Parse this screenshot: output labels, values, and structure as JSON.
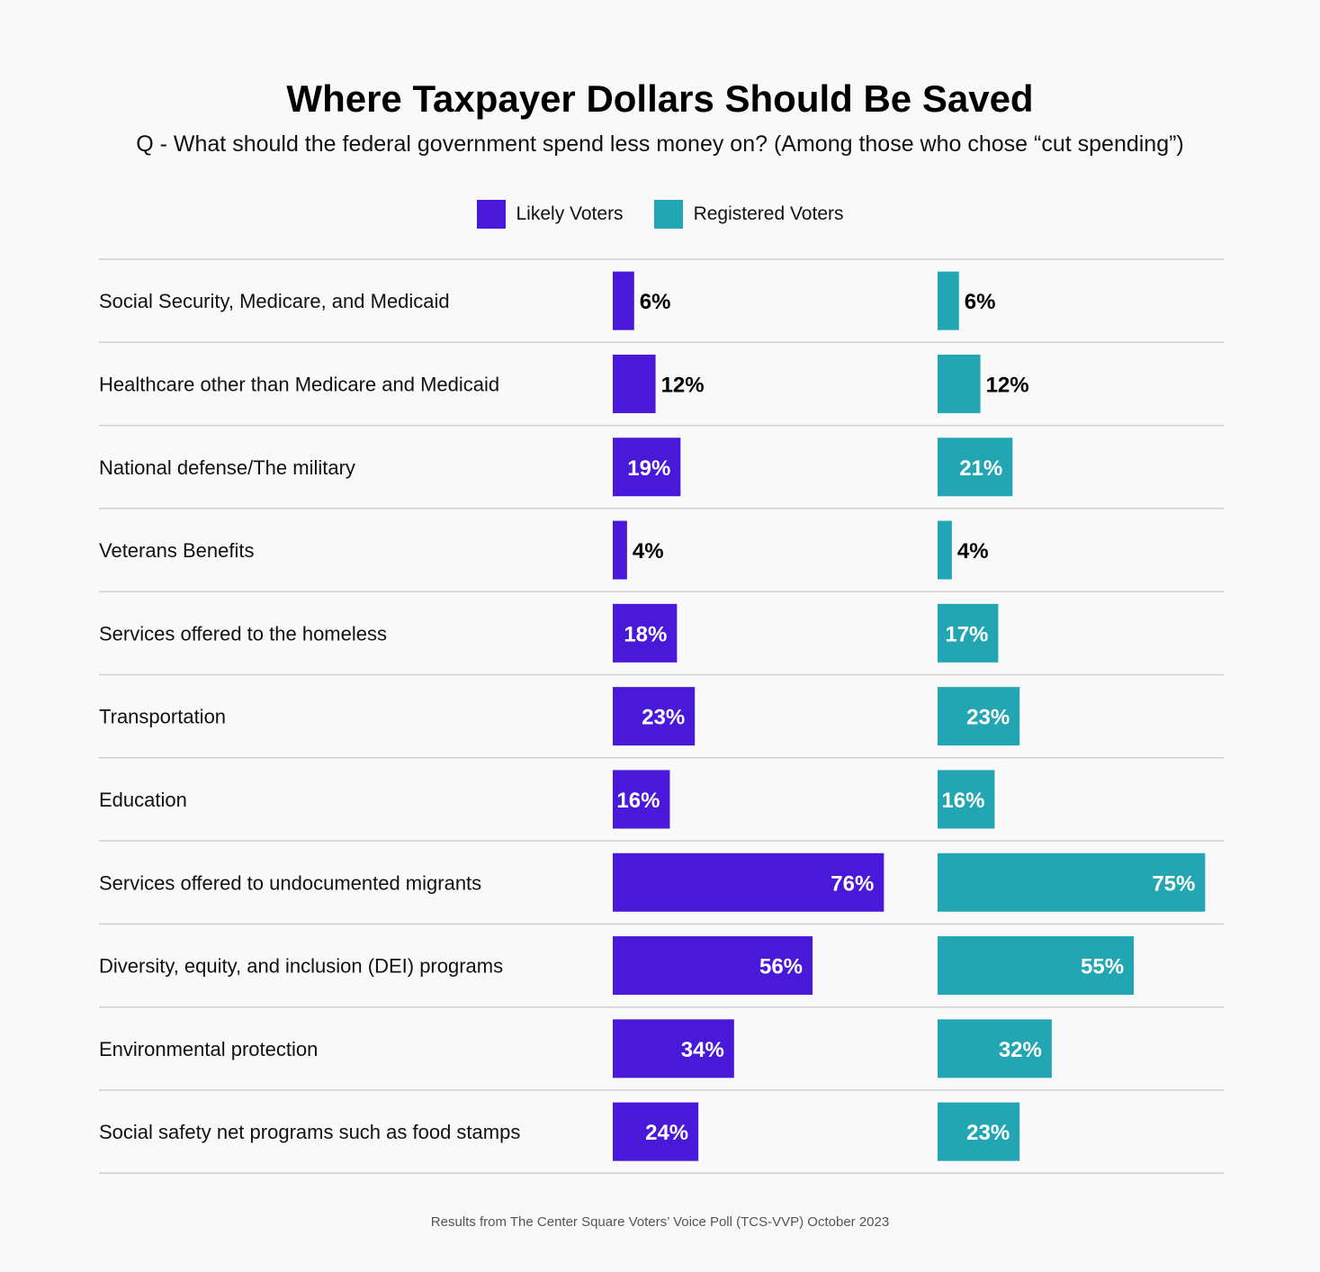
{
  "chart_data": {
    "type": "bar",
    "orientation": "horizontal",
    "title": "Where Taxpayer Dollars Should Be Saved",
    "subtitle": "Q - What should the federal government spend less money on? (Among those who chose “cut spending”)",
    "categories": [
      "Social Security, Medicare, and Medicaid",
      "Healthcare other than Medicare and Medicaid",
      "National defense/The military",
      "Veterans Benefits",
      "Services offered to the homeless",
      "Transportation",
      "Education",
      "Services offered to undocumented migrants",
      "Diversity, equity, and inclusion (DEI) programs",
      "Environmental protection",
      "Social safety net programs such as food stamps"
    ],
    "series": [
      {
        "name": "Likely Voters",
        "color": "#4a18d8",
        "values": [
          6,
          12,
          19,
          4,
          18,
          23,
          16,
          76,
          56,
          34,
          24
        ]
      },
      {
        "name": "Registered Voters",
        "color": "#22a6b3",
        "values": [
          6,
          12,
          21,
          4,
          17,
          23,
          16,
          75,
          55,
          32,
          23
        ]
      }
    ],
    "value_suffix": "%",
    "grid": false,
    "legend": "top-center",
    "xlim": [
      0,
      76
    ]
  },
  "footer": "Results from The Center Square Voters’ Voice Poll (TCS-VVP) October 2023"
}
